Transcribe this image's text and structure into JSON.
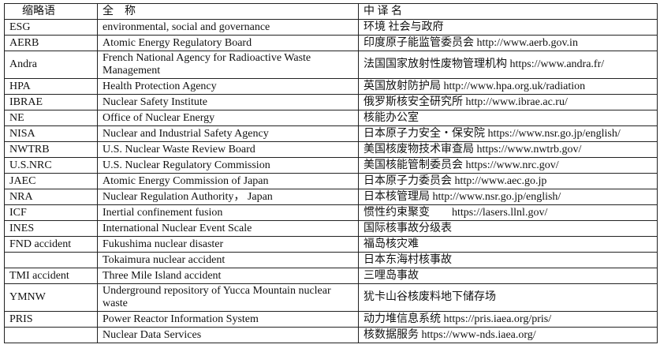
{
  "header": {
    "abbr": "缩略语",
    "full": "全　称",
    "cn": "中 译 名"
  },
  "rows": [
    {
      "abbr": "ESG",
      "full": "environmental, social and governance",
      "cn": "环境 社会与政府"
    },
    {
      "abbr": "AERB",
      "full": "Atomic Energy Regulatory Board",
      "cn": "印度原子能监管委员会 http://www.aerb.gov.in"
    },
    {
      "abbr": "Andra",
      "full": "French National Agency for Radioactive Waste Management",
      "cn": "法国国家放射性废物管理机构 https://www.andra.fr/"
    },
    {
      "abbr": "HPA",
      "full": "Health Protection Agency",
      "cn": "英国放射防护局 http://www.hpa.org.uk/radiation"
    },
    {
      "abbr": "IBRAE",
      "full": "Nuclear Safety Institute",
      "cn": "俄罗斯核安全研究所 http://www.ibrae.ac.ru/"
    },
    {
      "abbr": "NE",
      "full": "Office of Nuclear Energy",
      "cn": "核能办公室"
    },
    {
      "abbr": "NISA",
      "full": " Nuclear and Industrial Safety Agency",
      "cn": "日本原子力安全・保安院 https://www.nsr.go.jp/english/"
    },
    {
      "abbr": "NWTRB",
      "full": "U.S. Nuclear Waste Review Board",
      "cn": "美国核废物技术审查局 https://www.nwtrb.gov/"
    },
    {
      "abbr": "U.S.NRC",
      "full": "U.S. Nuclear Regulatory Commission",
      "cn": "美国核能管制委员会 https://www.nrc.gov/"
    },
    {
      "abbr": "JAEC",
      "full": "Atomic Energy Commission of Japan",
      "cn": "日本原子力委员会 http://www.aec.go.jp"
    },
    {
      "abbr": "NRA",
      "full": "Nuclear Regulation Authority，  Japan",
      "cn": "日本核管理局 http://www.nsr.go.jp/english/"
    },
    {
      "abbr": "ICF",
      "full": "Inertial confinement fusion",
      "cn": "惯性约束聚变　　https://lasers.llnl.gov/"
    },
    {
      "abbr": "INES",
      "full": "International Nuclear Event Scale",
      "cn": "国际核事故分级表"
    },
    {
      "abbr": "FND accident",
      "full": "Fukushima nuclear disaster",
      "cn": "福岛核灾难"
    },
    {
      "abbr": "",
      "full": "Tokaimura nuclear accident",
      "cn": "日本东海村核事故"
    },
    {
      "abbr": "TMI accident",
      "full": " Three Mile Island accident",
      "cn": "三哩岛事故"
    },
    {
      "abbr": "YMNW",
      "full": "Underground repository of Yucca Mountain nuclear waste",
      "cn": "犹卡山谷核废料地下储存场"
    },
    {
      "abbr": "PRIS",
      "full": " Power Reactor Information System",
      "cn": "动力堆信息系统 https://pris.iaea.org/pris/"
    },
    {
      "abbr": "",
      "full": "Nuclear Data Services",
      "cn": "核数据服务 https://www-nds.iaea.org/"
    }
  ]
}
